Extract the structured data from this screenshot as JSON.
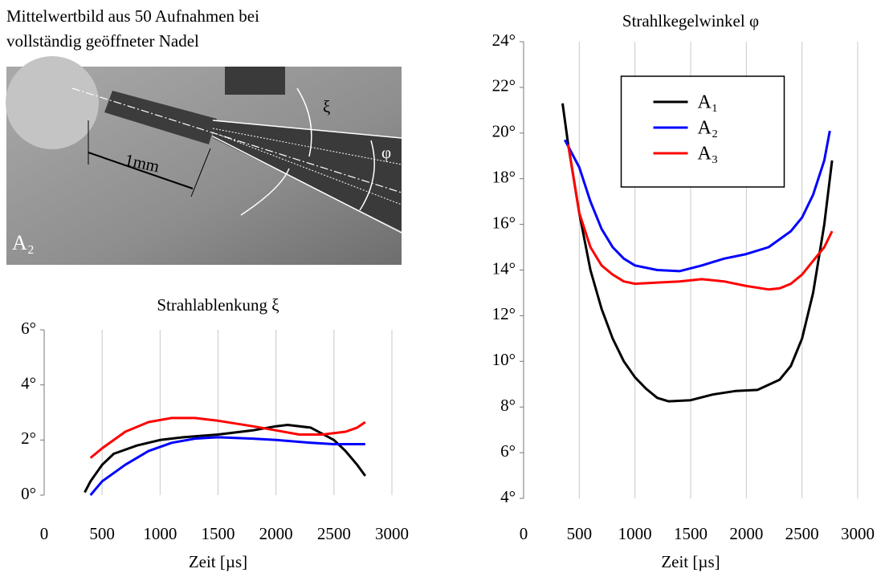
{
  "caption": [
    "Mittelwertbild aus 50 Aufnahmen bei",
    "vollständig geöffneter Nadel"
  ],
  "photo_labels": {
    "xi": "ξ",
    "phi": "φ",
    "scale": "1mm",
    "name": "A₂"
  },
  "chart_data": [
    {
      "type": "line",
      "title": "Strahlablenkung ξ",
      "x_label": "Zeit [µs]",
      "xlim": [
        0,
        3000
      ],
      "xticks": [
        0,
        500,
        1000,
        1500,
        2000,
        2500,
        3000
      ],
      "ylim": [
        0,
        6
      ],
      "yticks": [
        {
          "value": 0,
          "label": "0°"
        },
        {
          "value": 2,
          "label": "2°"
        },
        {
          "value": 4,
          "label": "4°"
        },
        {
          "value": 6,
          "label": "6°"
        }
      ],
      "grid": "x",
      "legend": false,
      "series": [
        {
          "color": "#000000",
          "x": [
            350,
            400,
            500,
            600,
            800,
            1000,
            1200,
            1500,
            1800,
            2000,
            2100,
            2300,
            2500,
            2600,
            2700,
            2770
          ],
          "values": [
            0.1,
            0.5,
            1.1,
            1.5,
            1.8,
            2.0,
            2.1,
            2.2,
            2.35,
            2.5,
            2.55,
            2.45,
            2.0,
            1.6,
            1.1,
            0.7
          ]
        },
        {
          "color": "#0000ff",
          "x": [
            400,
            500,
            700,
            900,
            1100,
            1300,
            1500,
            1800,
            2000,
            2300,
            2500,
            2770
          ],
          "values": [
            0.0,
            0.5,
            1.1,
            1.6,
            1.9,
            2.05,
            2.1,
            2.05,
            2.0,
            1.9,
            1.85,
            1.85
          ]
        },
        {
          "color": "#ff0000",
          "x": [
            400,
            500,
            700,
            900,
            1100,
            1300,
            1500,
            1800,
            2000,
            2200,
            2400,
            2600,
            2700,
            2770
          ],
          "values": [
            1.35,
            1.7,
            2.3,
            2.65,
            2.8,
            2.8,
            2.7,
            2.5,
            2.35,
            2.2,
            2.2,
            2.3,
            2.45,
            2.65
          ]
        }
      ]
    },
    {
      "type": "line",
      "title": "Strahlkegelwinkel φ",
      "x_label": "Zeit [µs]",
      "xlim": [
        0,
        3000
      ],
      "xticks": [
        0,
        500,
        1000,
        1500,
        2000,
        2500,
        3000
      ],
      "ylim": [
        4,
        24
      ],
      "yticks": [
        {
          "value": 4,
          "label": "4°"
        },
        {
          "value": 6,
          "label": "6°"
        },
        {
          "value": 8,
          "label": "8°"
        },
        {
          "value": 10,
          "label": "10°"
        },
        {
          "value": 12,
          "label": "12°"
        },
        {
          "value": 14,
          "label": "14°"
        },
        {
          "value": 16,
          "label": "16°"
        },
        {
          "value": 18,
          "label": "18°"
        },
        {
          "value": 20,
          "label": "20°"
        },
        {
          "value": 22,
          "label": "22°"
        },
        {
          "value": 24,
          "label": "24°"
        }
      ],
      "grid": "x",
      "legend": "upper center",
      "series": [
        {
          "name": "A₁",
          "color": "#000000",
          "x": [
            350,
            400,
            500,
            600,
            700,
            800,
            900,
            1000,
            1100,
            1200,
            1300,
            1500,
            1700,
            1900,
            2100,
            2300,
            2400,
            2500,
            2600,
            2700,
            2770
          ],
          "values": [
            21.3,
            19.5,
            16.5,
            14.0,
            12.3,
            11.0,
            10.0,
            9.3,
            8.8,
            8.4,
            8.25,
            8.3,
            8.55,
            8.7,
            8.75,
            9.2,
            9.8,
            11.0,
            13.0,
            16.0,
            18.8
          ]
        },
        {
          "name": "A₂",
          "color": "#0000ff",
          "x": [
            370,
            500,
            600,
            700,
            800,
            900,
            1000,
            1200,
            1400,
            1600,
            1800,
            2000,
            2200,
            2400,
            2500,
            2600,
            2700,
            2750
          ],
          "values": [
            19.7,
            18.5,
            17.0,
            15.8,
            15.0,
            14.5,
            14.2,
            14.0,
            13.95,
            14.2,
            14.5,
            14.7,
            15.0,
            15.7,
            16.3,
            17.3,
            18.8,
            20.1
          ]
        },
        {
          "name": "A₃",
          "color": "#ff0000",
          "x": [
            400,
            450,
            500,
            600,
            700,
            800,
            900,
            1000,
            1200,
            1400,
            1600,
            1800,
            2000,
            2200,
            2300,
            2400,
            2500,
            2600,
            2700,
            2770
          ],
          "values": [
            19.5,
            18.0,
            16.5,
            15.0,
            14.2,
            13.8,
            13.5,
            13.4,
            13.45,
            13.5,
            13.6,
            13.5,
            13.3,
            13.15,
            13.2,
            13.4,
            13.8,
            14.4,
            15.0,
            15.7
          ]
        }
      ]
    }
  ]
}
